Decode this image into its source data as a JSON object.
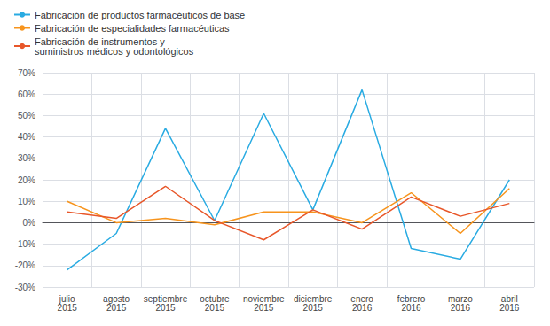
{
  "chart_data": {
    "type": "line",
    "categories": [
      "julio\n2015",
      "agosto\n2015",
      "septiembre\n2015",
      "octubre\n2015",
      "noviembre\n2015",
      "diciembre\n2015",
      "enero\n2016",
      "febrero\n2016",
      "marzo\n2016",
      "abril\n2016"
    ],
    "series": [
      {
        "name": "Fabricación de productos farmacéuticos de base",
        "color": "#29ABE2",
        "values": [
          -22,
          -5,
          44,
          1,
          51,
          6,
          62,
          -12,
          -17,
          20
        ]
      },
      {
        "name": "Fabricación de especialidades farmacéuticas",
        "color": "#F7941D",
        "values": [
          10,
          0,
          2,
          -1,
          5,
          5,
          0,
          14,
          -5,
          16
        ]
      },
      {
        "name": "Fabricación de instrumentos y\nsuministros médicos y odontológicos",
        "color": "#E8572A",
        "values": [
          5,
          2,
          17,
          1,
          -8,
          6,
          -3,
          12,
          3,
          9
        ]
      }
    ],
    "ylim": [
      -30,
      70
    ],
    "yticks": [
      {
        "value": -30,
        "label": "-30%"
      },
      {
        "value": -20,
        "label": "-20%"
      },
      {
        "value": -10,
        "label": "-10%"
      },
      {
        "value": 0,
        "label": "0%"
      },
      {
        "value": 10,
        "label": "10%"
      },
      {
        "value": 20,
        "label": "20%"
      },
      {
        "value": 30,
        "label": "30%"
      },
      {
        "value": 40,
        "label": "40%"
      },
      {
        "value": 50,
        "label": "50%"
      },
      {
        "value": 60,
        "label": "60%"
      },
      {
        "value": 70,
        "label": "70%"
      }
    ],
    "grid": true,
    "legend": "upper left"
  }
}
